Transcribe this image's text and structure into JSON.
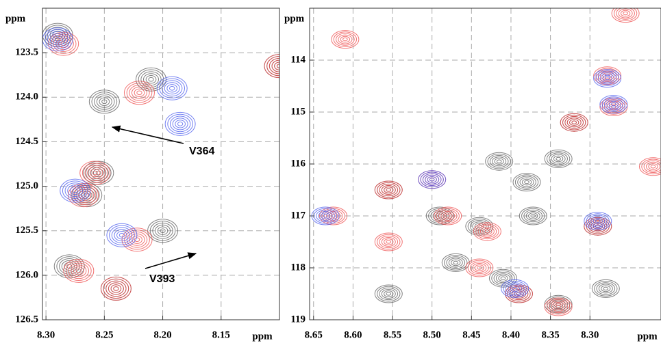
{
  "chart_data": [
    {
      "type": "contour",
      "xlabel": "ppm",
      "ylabel": "ppm",
      "xlim": [
        8.303,
        8.1
      ],
      "ylim": [
        123.0,
        126.5
      ],
      "xticks": [
        {
          "value": 8.3,
          "label": "8.30"
        },
        8.25,
        {
          "value": 8.2,
          "label": "8.20"
        },
        8.15
      ],
      "yticks": [
        123.5,
        {
          "value": 124,
          "label": "124.0"
        },
        124.5,
        {
          "value": 125,
          "label": "125.0"
        },
        125.5,
        {
          "value": 126,
          "label": "126.0"
        },
        126.5
      ],
      "grid": true,
      "annotations": [
        "V364",
        "V393"
      ],
      "series": [
        {
          "color": "#555555",
          "x": [
            8.29,
            8.25,
            8.21,
            8.265,
            8.255,
            8.2,
            8.28,
            8.24,
            8.1
          ],
          "values": [
            123.3,
            124.05,
            123.8,
            125.1,
            124.85,
            125.5,
            125.9,
            126.15,
            123.65
          ]
        },
        {
          "color": "#ee4444",
          "x": [
            8.285,
            8.22,
            8.268,
            8.258,
            8.222,
            8.272,
            8.24,
            8.1
          ],
          "values": [
            123.4,
            123.95,
            125.1,
            124.85,
            125.6,
            125.95,
            126.15,
            123.65
          ]
        },
        {
          "color": "#4455ee",
          "x": [
            8.29,
            8.192,
            8.185,
            8.275,
            8.235
          ],
          "values": [
            123.35,
            123.9,
            124.3,
            125.05,
            125.55
          ]
        }
      ]
    },
    {
      "type": "contour",
      "xlabel": "ppm",
      "ylabel": "ppm",
      "xlim": [
        8.655,
        8.21
      ],
      "ylim": [
        113.0,
        119.0
      ],
      "xticks": [
        8.65,
        {
          "value": 8.6,
          "label": "8.60"
        },
        8.55,
        {
          "value": 8.5,
          "label": "8.50"
        },
        8.45,
        {
          "value": 8.4,
          "label": "8.40"
        },
        8.35,
        {
          "value": 8.3,
          "label": "8.30"
        }
      ],
      "yticks": [
        114,
        115,
        116,
        117,
        118,
        119
      ],
      "grid": true,
      "series": [
        {
          "color": "#555555",
          "x": [
            8.555,
            8.49,
            8.44,
            8.415,
            8.38,
            8.372,
            8.34,
            8.32,
            8.29,
            8.47,
            8.39,
            8.34,
            8.28,
            8.555,
            8.41
          ],
          "values": [
            116.5,
            117.0,
            117.2,
            115.95,
            116.35,
            117.0,
            115.9,
            115.2,
            117.2,
            117.9,
            118.5,
            118.7,
            118.4,
            118.5,
            118.2
          ]
        },
        {
          "color": "#ee4444",
          "x": [
            8.61,
            8.555,
            8.5,
            8.625,
            8.555,
            8.48,
            8.43,
            8.32,
            8.278,
            8.27,
            8.29,
            8.44,
            8.39,
            8.34,
            8.255,
            8.22
          ],
          "values": [
            113.6,
            116.5,
            116.3,
            117.0,
            117.5,
            117.0,
            117.3,
            115.2,
            114.3,
            114.9,
            117.2,
            118.0,
            118.5,
            118.75,
            113.1,
            116.05
          ]
        },
        {
          "color": "#4455ee",
          "x": [
            8.5,
            8.635,
            8.278,
            8.27,
            8.395,
            8.29
          ],
          "values": [
            116.3,
            117.0,
            114.35,
            114.85,
            118.4,
            117.1
          ]
        }
      ]
    }
  ]
}
